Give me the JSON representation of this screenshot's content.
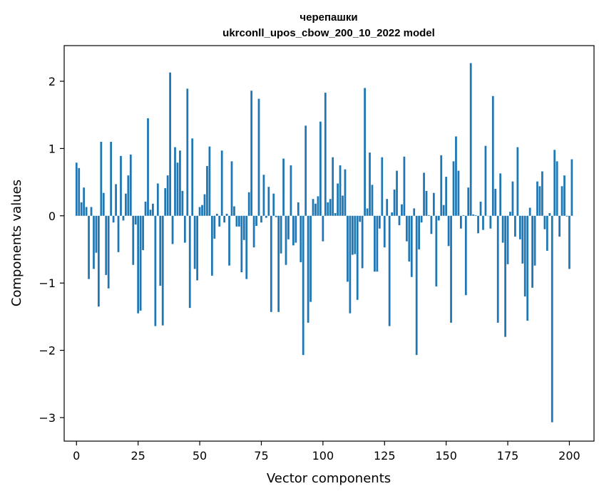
{
  "chart_data": {
    "type": "bar",
    "title": "черепашки",
    "subtitle": "ukrconll_upos_cbow_200_10_2022 model",
    "xlabel": "Vector components",
    "ylabel": "Components values",
    "xlim": [
      -5,
      210
    ],
    "ylim": [
      -3.35,
      2.53
    ],
    "xticks": [
      0,
      25,
      50,
      75,
      100,
      125,
      150,
      175,
      200
    ],
    "yticks": [
      -3,
      -2,
      -1,
      0,
      1,
      2
    ],
    "ytick_labels": [
      "−3",
      "−2",
      "−1",
      "0",
      "1",
      "2"
    ],
    "bar_color": "#1f77b4",
    "grid": false,
    "values": [
      0.79,
      0.71,
      0.2,
      0.42,
      0.13,
      -0.94,
      0.13,
      -0.79,
      -0.55,
      -1.35,
      1.1,
      0.34,
      -0.88,
      -1.08,
      1.1,
      -0.1,
      0.47,
      -0.54,
      0.89,
      -0.07,
      0.33,
      0.6,
      0.91,
      -0.73,
      -0.13,
      -1.45,
      -1.41,
      -0.51,
      0.21,
      1.45,
      0.09,
      0.18,
      -1.64,
      0.48,
      -1.04,
      -1.63,
      0.41,
      0.6,
      2.13,
      -0.42,
      1.02,
      0.79,
      0.97,
      0.37,
      -0.4,
      1.89,
      -1.37,
      1.15,
      -0.79,
      -0.96,
      0.13,
      0.16,
      0.32,
      0.74,
      1.03,
      -0.89,
      -0.34,
      0.03,
      -0.16,
      0.97,
      -0.1,
      0.03,
      -0.74,
      0.81,
      0.14,
      -0.16,
      -0.16,
      -0.84,
      -0.36,
      -0.94,
      0.35,
      1.86,
      -0.47,
      -0.15,
      1.74,
      -0.1,
      0.61,
      -0.03,
      0.43,
      -1.43,
      0.33,
      -0.02,
      -1.43,
      -0.56,
      0.85,
      -0.73,
      -0.35,
      0.75,
      -0.44,
      -0.4,
      0.2,
      -0.69,
      -2.07,
      1.34,
      -1.59,
      -1.28,
      0.25,
      0.18,
      0.29,
      1.4,
      -0.38,
      1.83,
      0.2,
      0.25,
      0.87,
      0.04,
      0.48,
      0.75,
      0.3,
      0.69,
      -0.98,
      -1.45,
      -0.58,
      -0.57,
      -1.25,
      -0.09,
      -0.78,
      1.9,
      0.11,
      0.94,
      0.46,
      -0.83,
      -0.83,
      -0.19,
      0.87,
      -0.47,
      0.25,
      -1.64,
      0.05,
      0.39,
      0.67,
      -0.14,
      0.17,
      0.88,
      -0.38,
      -0.68,
      -0.91,
      0.11,
      -2.07,
      -0.5,
      -0.1,
      0.64,
      0.37,
      0.01,
      -0.27,
      0.34,
      -1.05,
      -0.07,
      0.9,
      0.16,
      0.58,
      -0.45,
      -1.59,
      0.81,
      1.18,
      0.67,
      -0.19,
      0.01,
      -1.18,
      0.42,
      2.27,
      0.02,
      0.01,
      -0.26,
      0.21,
      -0.21,
      1.04,
      0.0,
      -0.19,
      1.78,
      0.4,
      -1.59,
      0.63,
      -0.4,
      -1.8,
      -0.72,
      0.06,
      0.51,
      -0.31,
      1.02,
      -0.35,
      -0.71,
      -1.2,
      -1.56,
      0.12,
      -1.07,
      -0.74,
      0.51,
      0.44,
      0.66,
      -0.2,
      -0.52,
      0.04,
      -3.07,
      0.98,
      0.81,
      -0.31,
      0.44,
      0.6,
      -0.01,
      -0.79,
      0.84
    ]
  }
}
